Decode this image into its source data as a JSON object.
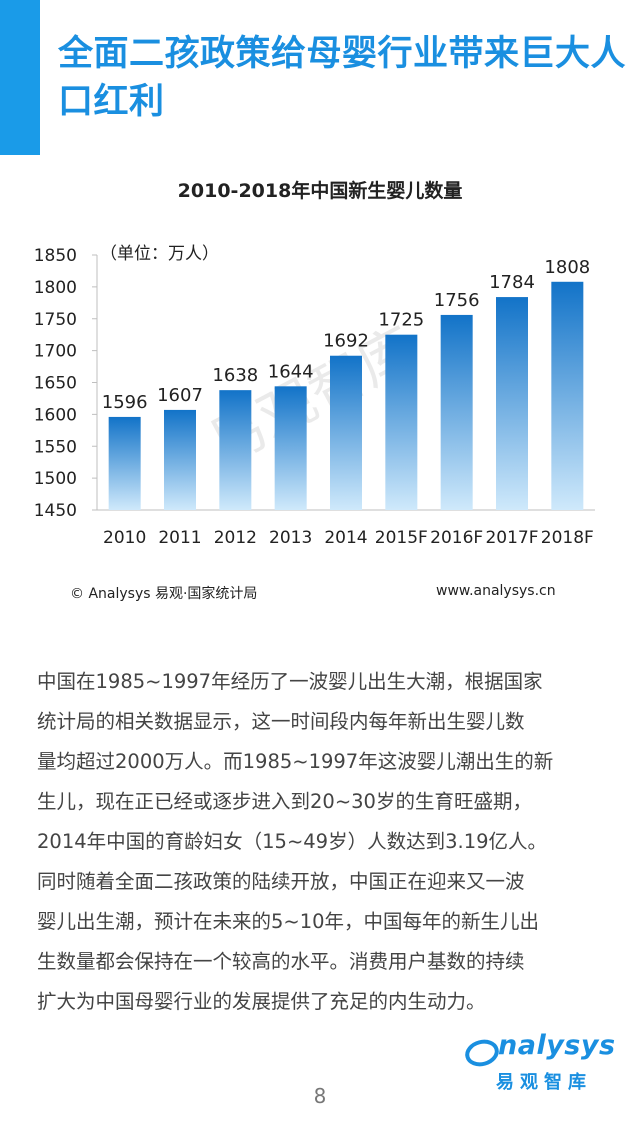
{
  "header": {
    "title": "全面二孩政策给母婴行业带来巨大人口红利",
    "accent_color": "#1a9be8"
  },
  "chart_data": {
    "type": "bar",
    "title": "2010-2018年中国新生婴儿数量",
    "unit_label": "（单位：万人）",
    "categories": [
      "2010",
      "2011",
      "2012",
      "2013",
      "2014",
      "2015F",
      "2016F",
      "2017F",
      "2018F"
    ],
    "values": [
      1596,
      1607,
      1638,
      1644,
      1692,
      1725,
      1756,
      1784,
      1808
    ],
    "ylim": [
      1450,
      1850
    ],
    "yticks": [
      1450,
      1500,
      1550,
      1600,
      1650,
      1700,
      1750,
      1800,
      1850
    ],
    "grid": false,
    "bar_color_top": "#1273c8",
    "bar_color_bottom": "#cfe9fb",
    "watermark": "易观智库"
  },
  "source": {
    "left": "© Analysys 易观·国家统计局",
    "right": "www.analysys.cn"
  },
  "body": {
    "text": "中国在1985~1997年经历了一波婴儿出生大潮，根据国家\n统计局的相关数据显示，这一时间段内每年新出生婴儿数\n量均超过2000万人。而1985~1997年这波婴儿潮出生的新\n生儿，现在正已经或逐步进入到20~30岁的生育旺盛期，\n2014年中国的育龄妇女（15~49岁）人数达到3.19亿人。\n同时随着全面二孩政策的陆续开放，中国正在迎来又一波\n婴儿出生潮，预计在未来的5~10年，中国每年的新生儿出\n生数量都会保持在一个较高的水平。消费用户基数的持续\n扩大为中国母婴行业的发展提供了充足的内生动力。"
  },
  "brand": {
    "word": "nalysys",
    "sub": "易观智库"
  },
  "page_number": "8"
}
